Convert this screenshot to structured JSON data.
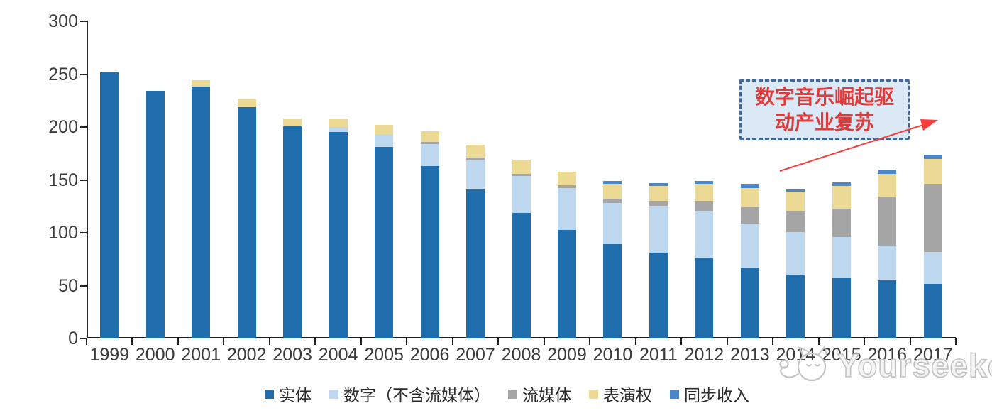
{
  "chart_data": {
    "type": "bar",
    "stacked": true,
    "title": "",
    "xlabel": "",
    "ylabel": "",
    "categories": [
      "1999",
      "2000",
      "2001",
      "2002",
      "2003",
      "2004",
      "2005",
      "2006",
      "2007",
      "2008",
      "2009",
      "2010",
      "2011",
      "2012",
      "2013",
      "2014",
      "2015",
      "2016",
      "2017"
    ],
    "series": [
      {
        "name": "实体",
        "key": "physical",
        "color": "#1F6DAD",
        "values": [
          252,
          234,
          238,
          219,
          201,
          195,
          181,
          163,
          141,
          119,
          103,
          89,
          81,
          76,
          67,
          60,
          57,
          55,
          52
        ]
      },
      {
        "name": "数字（不含流媒体）",
        "key": "digital-excl-streaming",
        "color": "#BDD7EE",
        "values": [
          0,
          0,
          0,
          0,
          0,
          5,
          12,
          21,
          28,
          35,
          39,
          39,
          44,
          44,
          42,
          41,
          39,
          33,
          30
        ]
      },
      {
        "name": "流媒体",
        "key": "streaming",
        "color": "#A5A5A5",
        "values": [
          0,
          0,
          0,
          0,
          0,
          0,
          0,
          2,
          2,
          2,
          3,
          4,
          5,
          10,
          15,
          19,
          27,
          46,
          64
        ]
      },
      {
        "name": "表演权",
        "key": "performance-rights",
        "color": "#EBD994",
        "values": [
          0,
          0,
          6,
          7,
          7,
          8,
          9,
          10,
          12,
          13,
          13,
          14,
          14,
          16,
          18,
          19,
          21,
          22,
          24
        ]
      },
      {
        "name": "同步收入",
        "key": "sync-revenue",
        "color": "#4A86C8",
        "values": [
          0,
          0,
          0,
          0,
          0,
          0,
          0,
          0,
          0,
          0,
          0,
          3,
          3,
          3,
          4,
          2,
          4,
          4,
          4
        ]
      }
    ],
    "ylim": [
      0,
      300
    ],
    "yticks": [
      0,
      50,
      100,
      150,
      200,
      250,
      300
    ],
    "grid": false,
    "legend_position": "bottom",
    "axis_color": "#262626",
    "label_color": "#3a3a3a",
    "annotation": {
      "text": "数字音乐崛起驱动产业复苏",
      "line1": "数字音乐崛起驱",
      "line2": "动产业复苏",
      "text_color": "#E03A3A",
      "box_fill": "#DBE9F6",
      "box_border": "#44679B",
      "arrow_color": "#FA3C3C"
    },
    "watermark": "Yourseeker"
  }
}
